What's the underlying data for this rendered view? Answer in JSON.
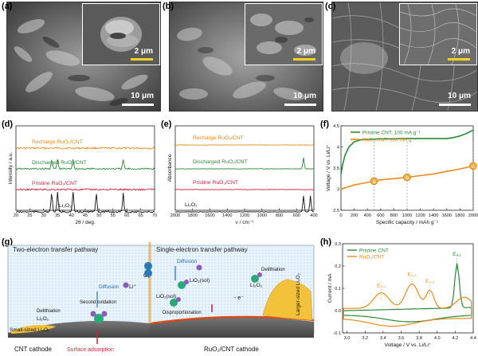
{
  "panels": {
    "a": {
      "label": "(a)",
      "scale_main": "10 μm",
      "scale_inset": "2 μm"
    },
    "b": {
      "label": "(b)",
      "scale_main": "10 μm",
      "scale_inset": "2 μm"
    },
    "c": {
      "label": "(c)",
      "scale_main": "10 μm",
      "scale_inset": "2 μm"
    },
    "d": {
      "label": "(d)"
    },
    "e": {
      "label": "(e)"
    },
    "f": {
      "label": "(f)"
    },
    "g": {
      "label": "(g)"
    },
    "h": {
      "label": "(h)"
    }
  },
  "colors": {
    "orange": "#e8891c",
    "green": "#2a8a3a",
    "red": "#d0203b",
    "black": "#111111",
    "yellow": "#f2d21a"
  },
  "chart_data": [
    {
      "id": "d",
      "type": "line",
      "xlabel": "2θ / deg.",
      "ylabel": "Intensity / a.u.",
      "xlim": [
        20,
        70
      ],
      "xticks": [
        20,
        25,
        30,
        35,
        40,
        45,
        50,
        55,
        60,
        65,
        70
      ],
      "series": [
        {
          "name": "Recharge RuO₂/CNT",
          "color": "#e8891c"
        },
        {
          "name": "Discharged RuO₂/CNT",
          "color": "#2a8a3a",
          "peaks": [
            32.9,
            35.0,
            40.6,
            58.7
          ]
        },
        {
          "name": "Pristine RuO₂/CNT",
          "color": "#d0203b"
        },
        {
          "name": "Li₂O₂",
          "color": "#111111",
          "peaks": [
            32.9,
            35.0,
            40.6,
            49.0,
            58.7
          ]
        }
      ]
    },
    {
      "id": "e",
      "type": "line",
      "xlabel": "ν / cm⁻¹",
      "ylabel": "Absorbance",
      "xlim": [
        2000,
        400
      ],
      "xticks": [
        2000,
        1800,
        1600,
        1400,
        1200,
        1000,
        800,
        600,
        400
      ],
      "series": [
        {
          "name": "Recharge RuO₂/CNT",
          "color": "#e8891c"
        },
        {
          "name": "Discharged RuO₂/CNT",
          "color": "#2a8a3a",
          "peaks": [
            520
          ]
        },
        {
          "name": "Pristine RuO₂/CNT",
          "color": "#d0203b"
        },
        {
          "name": "Li₂O₂",
          "color": "#111111",
          "peaks": [
            520,
            440
          ]
        }
      ]
    },
    {
      "id": "f",
      "type": "line",
      "xlabel": "Specific capacity / mAh g⁻¹",
      "ylabel": "Voltage / V vs. Li/Li⁺",
      "xlim": [
        0,
        2000
      ],
      "ylim": [
        2.5,
        4.5
      ],
      "xticks": [
        0,
        200,
        400,
        600,
        800,
        1000,
        1200,
        1400,
        1600,
        1800,
        2000
      ],
      "yticks": [
        2.5,
        3.0,
        3.5,
        4.0,
        4.5
      ],
      "series": [
        {
          "name": "Pristine CNT, 100 mA g⁻¹",
          "color": "#2a8a3a",
          "x": [
            0,
            20,
            60,
            120,
            200,
            300,
            400,
            600,
            800,
            1000,
            1200,
            1400,
            1600,
            1700,
            1800,
            1900,
            2000
          ],
          "y": [
            3.35,
            3.55,
            3.8,
            4.0,
            4.12,
            4.17,
            4.18,
            4.19,
            4.19,
            4.2,
            4.2,
            4.2,
            4.2,
            4.22,
            4.26,
            4.32,
            4.4
          ]
        },
        {
          "name": "RuO₂/CNT, 100 mA g⁻¹",
          "color": "#e8891c",
          "x": [
            0,
            100,
            200,
            300,
            400,
            500,
            600,
            800,
            1000,
            1200,
            1400,
            1600,
            1800,
            2000
          ],
          "y": [
            3.0,
            3.05,
            3.1,
            3.13,
            3.16,
            3.19,
            3.22,
            3.25,
            3.28,
            3.32,
            3.36,
            3.42,
            3.48,
            3.55
          ]
        }
      ],
      "markers": [
        {
          "label": "a",
          "x": 500,
          "y": 3.19
        },
        {
          "label": "b",
          "x": 1000,
          "y": 3.28
        },
        {
          "label": "c",
          "x": 2000,
          "y": 3.55
        }
      ]
    },
    {
      "id": "h",
      "type": "line",
      "xlabel": "Voltage / V vs. Li/Li⁺",
      "ylabel": "Current / mA",
      "xlim": [
        2.95,
        4.4
      ],
      "ylim": [
        -0.1,
        0.3
      ],
      "xticks": [
        3.0,
        3.2,
        3.4,
        3.6,
        3.8,
        4.0,
        4.2,
        4.4
      ],
      "yticks": [
        -0.1,
        0.0,
        0.1,
        0.2,
        0.3
      ],
      "series": [
        {
          "name": "Pristine CNT",
          "color": "#2a8a3a"
        },
        {
          "name": "RuO₂/CNT",
          "color": "#e8891c"
        }
      ],
      "annotations": [
        "E₀,₁",
        "E₀,₂",
        "E₀,₃",
        "Eₐ,₁"
      ]
    }
  ],
  "schematic": {
    "left_title": "Two-electron transfer pathway",
    "right_title": "Single-electron transfer pathway",
    "left_cathode": "CNT cathode",
    "right_cathode": "RuO₂/CNT cathode",
    "surface_adsorption": "Surface adsorption",
    "labels": {
      "diffusion_left": "Diffusion",
      "diffusion_right": "Diffusion",
      "delithiation_left": "Delithiation",
      "delithiation_right": "Delithiation",
      "li2o2_left": "Li₂O₂",
      "li2o2_right": "Li₂O₂",
      "small_sized": "Small-sized Li₂O₂",
      "larger_sized": "Larger-sized Li₂O₂",
      "second_oxidation": "Second oxidation",
      "disproportionation": "Disproportionation",
      "lio2_sol": "LiO₂(sol)",
      "lio2_sol2": "LiO₂(sol)",
      "o2": "O₂",
      "li_plus": "Li⁺",
      "e_minus": "- e⁻"
    }
  }
}
